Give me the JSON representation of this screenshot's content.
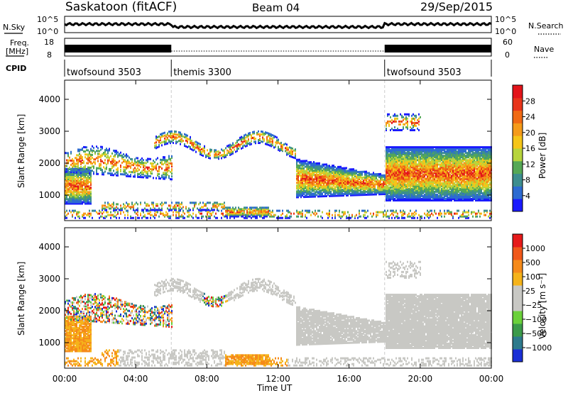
{
  "header": {
    "title": "Saskatoon (fitACF)",
    "beam": "Beam 04",
    "date": "29/Sep/2015"
  },
  "top_panels": {
    "nsky_label": "N.Sky",
    "nsearch_label": "N.Search",
    "nsky_ticks": [
      "10^5",
      "10^0"
    ],
    "freq_label": "Freq.",
    "freq_unit": "[MHz]",
    "freq_ticks": [
      "18",
      "8"
    ],
    "nave_ticks": [
      "60",
      "0"
    ],
    "nave_label": "Nave",
    "cpid_label": "CPID"
  },
  "cpid_segments": [
    {
      "name": "twofsound 3503",
      "start_h": 0,
      "end_h": 6
    },
    {
      "name": "themis 3300",
      "start_h": 6,
      "end_h": 18
    },
    {
      "name": "twofsound 3503",
      "start_h": 18,
      "end_h": 24
    }
  ],
  "chart_data": [
    {
      "type": "heatmap",
      "panel": "power",
      "ylabel": "Slant Range [km]",
      "ylim": [
        200,
        4600
      ],
      "y_ticks": [
        "1000",
        "2000",
        "3000",
        "4000"
      ],
      "x_ticks": [
        "00:00",
        "04:00",
        "08:00",
        "12:00",
        "16:00",
        "20:00",
        "00:00"
      ],
      "colorbar": {
        "label": "Power [dB]",
        "ticks": [
          "4",
          "8",
          "12",
          "16",
          "20",
          "24",
          "28"
        ],
        "colors": [
          "#1a1aff",
          "#2d6bd1",
          "#3d8e8e",
          "#55a855",
          "#b7d43c",
          "#f5c518",
          "#f59b1a",
          "#f06a14",
          "#e8341a",
          "#e3141a"
        ]
      }
    },
    {
      "type": "heatmap",
      "panel": "velocity",
      "ylabel": "Slant Range [km]",
      "ylim": [
        200,
        4600
      ],
      "y_ticks": [
        "1000",
        "2000",
        "3000",
        "4000"
      ],
      "x_ticks": [
        "00:00",
        "04:00",
        "08:00",
        "12:00",
        "16:00",
        "20:00",
        "00:00"
      ],
      "xlabel": "Time UT",
      "colorbar": {
        "label": "Velocity [m s⁻¹]",
        "ticks": [
          "1000",
          "500",
          "100",
          "25",
          "−25",
          "−100",
          "−500",
          "−1000"
        ],
        "colors": [
          "#1a2fd6",
          "#2d7a8c",
          "#3b9a4a",
          "#6bd13a",
          "#c8c8c4",
          "#c8c8c4",
          "#f5b31a",
          "#f58a1a",
          "#f0581a",
          "#e61a1a"
        ]
      }
    }
  ],
  "sc": {
    "power_strong": "#e3141a",
    "ground_gray": "#bcbcb8"
  }
}
